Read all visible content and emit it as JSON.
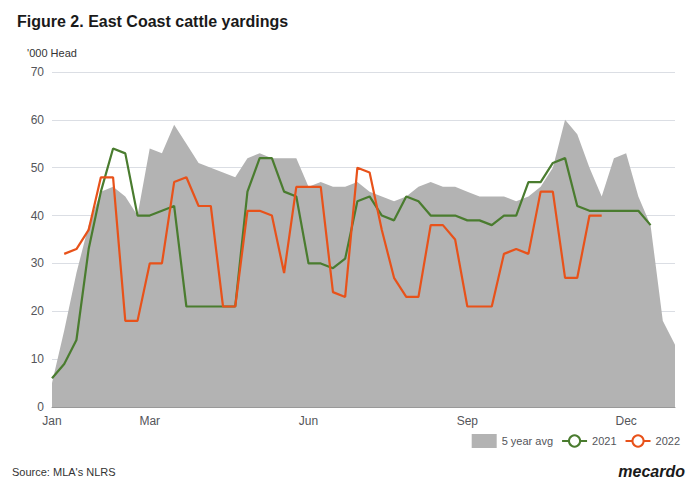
{
  "chart_data": {
    "type": "line",
    "title": "Figure 2. East Coast cattle yardings",
    "ylabel": "'000 Head",
    "annotations": [
      "Source: MLA's NLRS",
      "mecardo"
    ],
    "categories": [
      "Jan",
      null,
      null,
      null,
      null,
      null,
      null,
      null,
      "Mar",
      null,
      null,
      null,
      null,
      null,
      null,
      null,
      null,
      null,
      null,
      null,
      null,
      "Jun",
      null,
      null,
      null,
      null,
      null,
      null,
      null,
      null,
      null,
      null,
      null,
      null,
      "Sep",
      null,
      null,
      null,
      null,
      null,
      null,
      null,
      null,
      null,
      null,
      null,
      null,
      "Dec",
      null,
      null,
      null,
      null
    ],
    "series": [
      {
        "name": "5 year avg",
        "type": "area",
        "color": "#b3b3b3",
        "values": [
          5,
          16,
          28,
          38,
          45,
          46,
          44,
          40,
          54,
          53,
          59,
          55,
          51,
          50,
          49,
          48,
          52,
          53,
          52,
          52,
          52,
          46,
          47,
          46,
          46,
          47,
          45,
          44,
          43,
          44,
          46,
          47,
          46,
          46,
          45,
          44,
          44,
          44,
          43,
          44,
          46,
          50,
          60,
          57,
          50,
          44,
          52,
          53,
          44,
          38,
          18,
          13
        ]
      },
      {
        "name": "2021",
        "type": "line",
        "color": "#4a7c2f",
        "values": [
          6,
          9,
          14,
          33,
          45,
          54,
          53,
          40,
          40,
          41,
          42,
          21,
          21,
          21,
          21,
          21,
          45,
          52,
          52,
          45,
          44,
          30,
          30,
          29,
          31,
          43,
          44,
          40,
          39,
          44,
          43,
          40,
          40,
          40,
          39,
          39,
          38,
          40,
          40,
          47,
          47,
          51,
          52,
          42,
          41,
          41,
          41,
          41,
          41,
          38,
          null,
          null
        ]
      },
      {
        "name": "2022",
        "type": "line",
        "color": "#e8521a",
        "values": [
          null,
          32,
          33,
          37,
          48,
          48,
          18,
          18,
          30,
          30,
          47,
          48,
          42,
          42,
          21,
          21,
          41,
          41,
          40,
          28,
          46,
          46,
          46,
          24,
          23,
          50,
          49,
          37,
          27,
          23,
          23,
          38,
          38,
          35,
          21,
          21,
          21,
          32,
          33,
          32,
          45,
          45,
          27,
          27,
          40,
          40,
          null,
          null,
          null,
          null,
          null,
          null
        ]
      }
    ],
    "ylim": [
      0,
      70
    ],
    "yticks": [
      0,
      10,
      20,
      30,
      40,
      50,
      60,
      70
    ],
    "grid": true,
    "legend": "lower right"
  }
}
